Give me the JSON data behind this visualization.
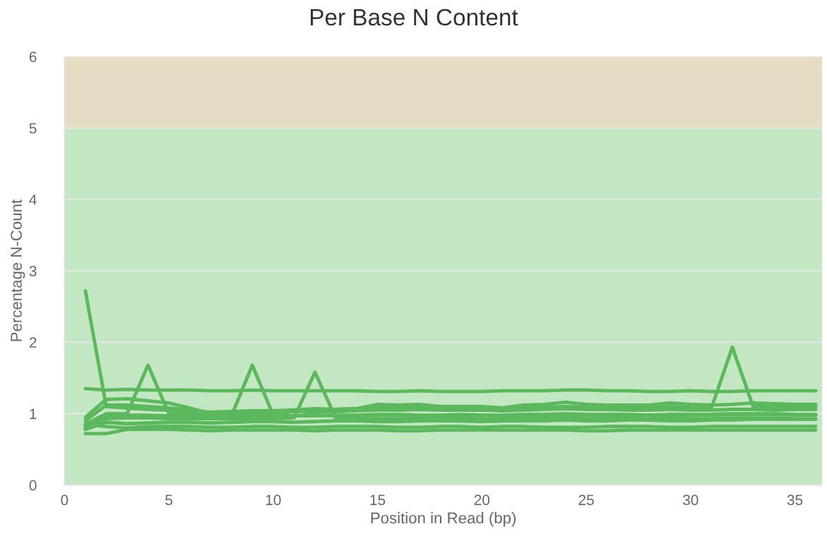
{
  "chart_data": {
    "type": "line",
    "title": "Per Base N Content",
    "xlabel": "Position in Read (bp)",
    "ylabel": "Percentage N-Count",
    "x": [
      1,
      2,
      3,
      4,
      5,
      6,
      7,
      8,
      9,
      10,
      11,
      12,
      13,
      14,
      15,
      16,
      17,
      18,
      19,
      20,
      21,
      22,
      23,
      24,
      25,
      26,
      27,
      28,
      29,
      30,
      31,
      32,
      33,
      34,
      35,
      36
    ],
    "series": [
      {
        "color": "#5cb85c",
        "values": [
          1.35,
          1.33,
          1.34,
          1.33,
          1.33,
          1.33,
          1.32,
          1.32,
          1.33,
          1.32,
          1.32,
          1.32,
          1.32,
          1.32,
          1.31,
          1.31,
          1.32,
          1.31,
          1.31,
          1.31,
          1.32,
          1.32,
          1.32,
          1.33,
          1.33,
          1.32,
          1.32,
          1.31,
          1.31,
          1.32,
          1.31,
          1.31,
          1.32,
          1.32,
          1.32,
          1.32
        ]
      },
      {
        "color": "#5cb85c",
        "values": [
          2.72,
          1.1,
          1.08,
          1.06,
          1.05,
          1.02,
          0.98,
          1.0,
          1.01,
          1.0,
          1.03,
          1.02,
          1.03,
          1.04,
          1.05,
          1.05,
          1.06,
          1.05,
          1.05,
          1.05,
          1.04,
          1.05,
          1.06,
          1.07,
          1.06,
          1.06,
          1.05,
          1.05,
          1.06,
          1.05,
          1.05,
          1.06,
          1.06,
          1.05,
          1.06,
          1.06
        ]
      },
      {
        "color": "#5cb85c",
        "values": [
          0.85,
          1.0,
          1.0,
          1.68,
          1.0,
          0.98,
          0.95,
          0.96,
          0.97,
          0.96,
          0.97,
          0.98,
          0.97,
          0.97,
          0.98,
          0.98,
          0.97,
          0.97,
          0.98,
          0.98,
          0.97,
          0.97,
          0.98,
          0.98,
          0.98,
          0.97,
          0.97,
          0.98,
          0.98,
          0.98,
          0.98,
          0.99,
          0.99,
          0.99,
          0.98,
          0.98
        ]
      },
      {
        "color": "#5cb85c",
        "values": [
          0.8,
          0.95,
          0.98,
          0.98,
          0.97,
          0.96,
          0.95,
          0.97,
          1.68,
          0.98,
          0.97,
          0.97,
          0.98,
          0.98,
          0.99,
          0.99,
          0.98,
          0.98,
          0.99,
          0.98,
          0.98,
          0.99,
          0.99,
          1.0,
          0.99,
          0.99,
          0.99,
          0.98,
          0.99,
          0.99,
          0.99,
          1.0,
          1.0,
          1.0,
          0.99,
          0.99
        ]
      },
      {
        "color": "#5cb85c",
        "values": [
          0.82,
          0.93,
          0.94,
          0.94,
          0.93,
          0.93,
          0.93,
          0.93,
          0.93,
          0.93,
          0.94,
          1.58,
          0.94,
          0.93,
          0.93,
          0.93,
          0.93,
          0.93,
          0.94,
          0.93,
          0.93,
          0.93,
          0.94,
          0.94,
          0.93,
          0.93,
          0.93,
          0.93,
          0.94,
          0.93,
          0.93,
          0.94,
          0.94,
          0.94,
          0.93,
          0.93
        ]
      },
      {
        "color": "#5cb85c",
        "values": [
          0.9,
          1.12,
          1.12,
          1.1,
          1.08,
          1.05,
          1.02,
          1.03,
          1.04,
          1.04,
          1.05,
          1.06,
          1.06,
          1.07,
          1.08,
          1.08,
          1.09,
          1.08,
          1.08,
          1.08,
          1.07,
          1.08,
          1.09,
          1.1,
          1.09,
          1.09,
          1.08,
          1.08,
          1.1,
          1.09,
          1.08,
          1.93,
          1.1,
          1.1,
          1.1,
          1.1
        ]
      },
      {
        "color": "#5cb85c",
        "values": [
          0.95,
          1.2,
          1.21,
          1.18,
          1.15,
          1.08,
          1.0,
          1.02,
          1.03,
          1.02,
          1.05,
          1.07,
          1.06,
          1.07,
          1.13,
          1.12,
          1.13,
          1.1,
          1.1,
          1.1,
          1.08,
          1.12,
          1.13,
          1.16,
          1.13,
          1.12,
          1.12,
          1.12,
          1.15,
          1.13,
          1.12,
          1.13,
          1.15,
          1.14,
          1.13,
          1.13
        ]
      },
      {
        "color": "#5cb85c",
        "values": [
          0.72,
          0.72,
          0.78,
          0.78,
          0.78,
          0.77,
          0.76,
          0.77,
          0.77,
          0.77,
          0.77,
          0.76,
          0.77,
          0.77,
          0.77,
          0.76,
          0.76,
          0.77,
          0.77,
          0.77,
          0.77,
          0.77,
          0.77,
          0.77,
          0.76,
          0.76,
          0.77,
          0.77,
          0.77,
          0.77,
          0.77,
          0.77,
          0.77,
          0.77,
          0.77,
          0.77
        ]
      },
      {
        "color": "#5cb85c",
        "values": [
          0.85,
          0.82,
          0.8,
          0.82,
          0.82,
          0.82,
          0.81,
          0.81,
          0.82,
          0.82,
          0.81,
          0.81,
          0.82,
          0.82,
          0.82,
          0.81,
          0.81,
          0.82,
          0.82,
          0.81,
          0.82,
          0.82,
          0.81,
          0.81,
          0.81,
          0.82,
          0.82,
          0.82,
          0.81,
          0.81,
          0.82,
          0.82,
          0.82,
          0.82,
          0.82,
          0.82
        ]
      },
      {
        "color": "#5cb85c",
        "values": [
          0.78,
          0.88,
          0.86,
          0.87,
          0.88,
          0.88,
          0.87,
          0.88,
          0.89,
          0.89,
          0.88,
          0.89,
          0.9,
          0.9,
          0.89,
          0.89,
          0.9,
          0.9,
          0.9,
          0.89,
          0.9,
          0.9,
          0.9,
          0.91,
          0.9,
          0.9,
          0.91,
          0.91,
          0.9,
          0.9,
          0.91,
          0.91,
          0.92,
          0.92,
          0.92,
          0.92
        ]
      }
    ],
    "xlim": [
      0,
      36.3
    ],
    "ylim": [
      0,
      6
    ],
    "xticks": [
      0,
      5,
      10,
      15,
      20,
      25,
      30,
      35
    ],
    "yticks": [
      0,
      1,
      2,
      3,
      4,
      5,
      6
    ],
    "bands": [
      {
        "axis": "y",
        "from": 0,
        "to": 5,
        "color": "#c3e6c3"
      },
      {
        "axis": "y",
        "from": 5,
        "to": 6,
        "color": "#e6dcc3"
      }
    ],
    "grid": "y"
  }
}
